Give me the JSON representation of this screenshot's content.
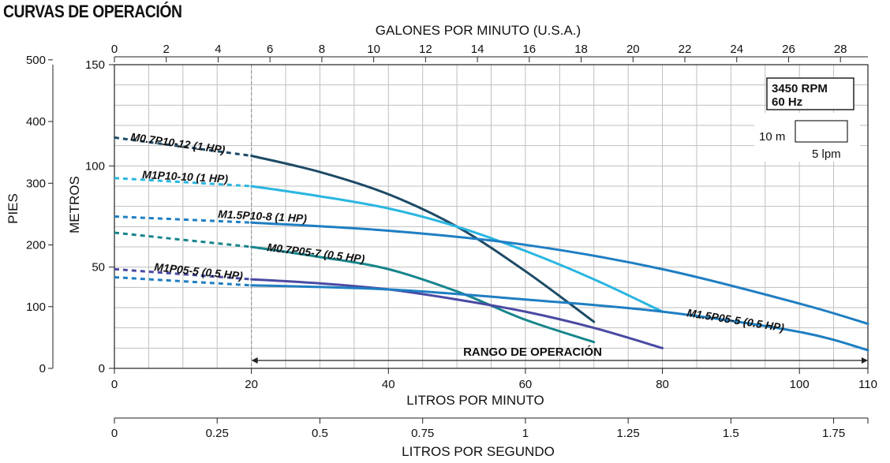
{
  "title": "CURVAS DE OPERACIÓN",
  "chart_data": {
    "type": "line",
    "grid": true,
    "axes": {
      "x_lpm": {
        "label": "LITROS POR MINUTO",
        "range": [
          0,
          110
        ],
        "ticks": [
          0,
          20,
          40,
          60,
          80,
          100,
          110
        ]
      },
      "x_gpm": {
        "label": "GALONES POR MINUTO (U.S.A.)",
        "range": [
          0,
          29.06
        ],
        "ticks": [
          0,
          2,
          4,
          6,
          8,
          10,
          12,
          14,
          16,
          18,
          20,
          22,
          24,
          26,
          28
        ]
      },
      "x_lps": {
        "label": "LITROS POR SEGUNDO",
        "range": [
          0,
          1.8333
        ],
        "ticks": [
          "0",
          "0.25",
          "0.5",
          "0.75",
          "1",
          "1.25",
          "1.5",
          "1.75"
        ]
      },
      "y_m": {
        "label": "METROS",
        "range": [
          0,
          150
        ],
        "ticks": [
          0,
          50,
          100,
          150
        ]
      },
      "y_ft": {
        "label": "PIES",
        "range": [
          0,
          492
        ],
        "ticks": [
          0,
          100,
          200,
          300,
          400,
          500
        ]
      }
    },
    "series": [
      {
        "name": "M0.7P10-12 (1 HP)",
        "color": "#1d4a66",
        "dashed": [
          [
            0,
            114
          ],
          [
            20,
            105
          ]
        ],
        "points": [
          [
            20,
            105
          ],
          [
            30,
            97
          ],
          [
            40,
            86
          ],
          [
            50,
            70
          ],
          [
            60,
            48
          ],
          [
            70,
            23
          ]
        ]
      },
      {
        "name": "M1P10-10 (1 HP)",
        "color": "#29b6e0",
        "dashed": [
          [
            0,
            94
          ],
          [
            20,
            90
          ]
        ],
        "points": [
          [
            20,
            90
          ],
          [
            30,
            85
          ],
          [
            40,
            79
          ],
          [
            50,
            70
          ],
          [
            60,
            58
          ],
          [
            70,
            44
          ],
          [
            80,
            28
          ]
        ]
      },
      {
        "name": "M1.5P10-8 (1 HP)",
        "color": "#1f7ec2",
        "dashed": [
          [
            0,
            75
          ],
          [
            20,
            72
          ]
        ],
        "points": [
          [
            20,
            72
          ],
          [
            40,
            68
          ],
          [
            60,
            61
          ],
          [
            80,
            49
          ],
          [
            100,
            32
          ],
          [
            110,
            22
          ]
        ]
      },
      {
        "name": "M0.7P05-7 (0.5 HP)",
        "color": "#17858c",
        "dashed": [
          [
            0,
            67
          ],
          [
            20,
            60
          ]
        ],
        "points": [
          [
            20,
            60
          ],
          [
            30,
            55
          ],
          [
            40,
            49
          ],
          [
            50,
            38
          ],
          [
            60,
            24
          ],
          [
            70,
            13
          ]
        ]
      },
      {
        "name": "M1P05-5 (0.5 HP)",
        "color": "#4a4aa3",
        "dashed": [
          [
            0,
            49
          ],
          [
            20,
            44
          ]
        ],
        "points": [
          [
            20,
            44
          ],
          [
            30,
            42
          ],
          [
            40,
            39
          ],
          [
            50,
            34
          ],
          [
            60,
            28
          ],
          [
            70,
            20
          ],
          [
            80,
            10
          ]
        ]
      },
      {
        "name": "M1.5P05-5 (0.5 HP)",
        "color": "#1f7ec2",
        "dashed": [
          [
            0,
            45
          ],
          [
            20,
            41
          ]
        ],
        "points": [
          [
            20,
            41
          ],
          [
            40,
            39
          ],
          [
            60,
            34
          ],
          [
            80,
            28
          ],
          [
            100,
            18
          ],
          [
            110,
            9
          ]
        ]
      }
    ],
    "annotations": {
      "operating_range": {
        "label": "RANGO DE OPERACIÓN",
        "from": 20,
        "to": 110
      },
      "legend_box": {
        "speed": "3450 RPM",
        "freq": "60 Hz"
      },
      "scale_box": {
        "vertical": "10 m",
        "horizontal": "5 lpm"
      }
    }
  }
}
